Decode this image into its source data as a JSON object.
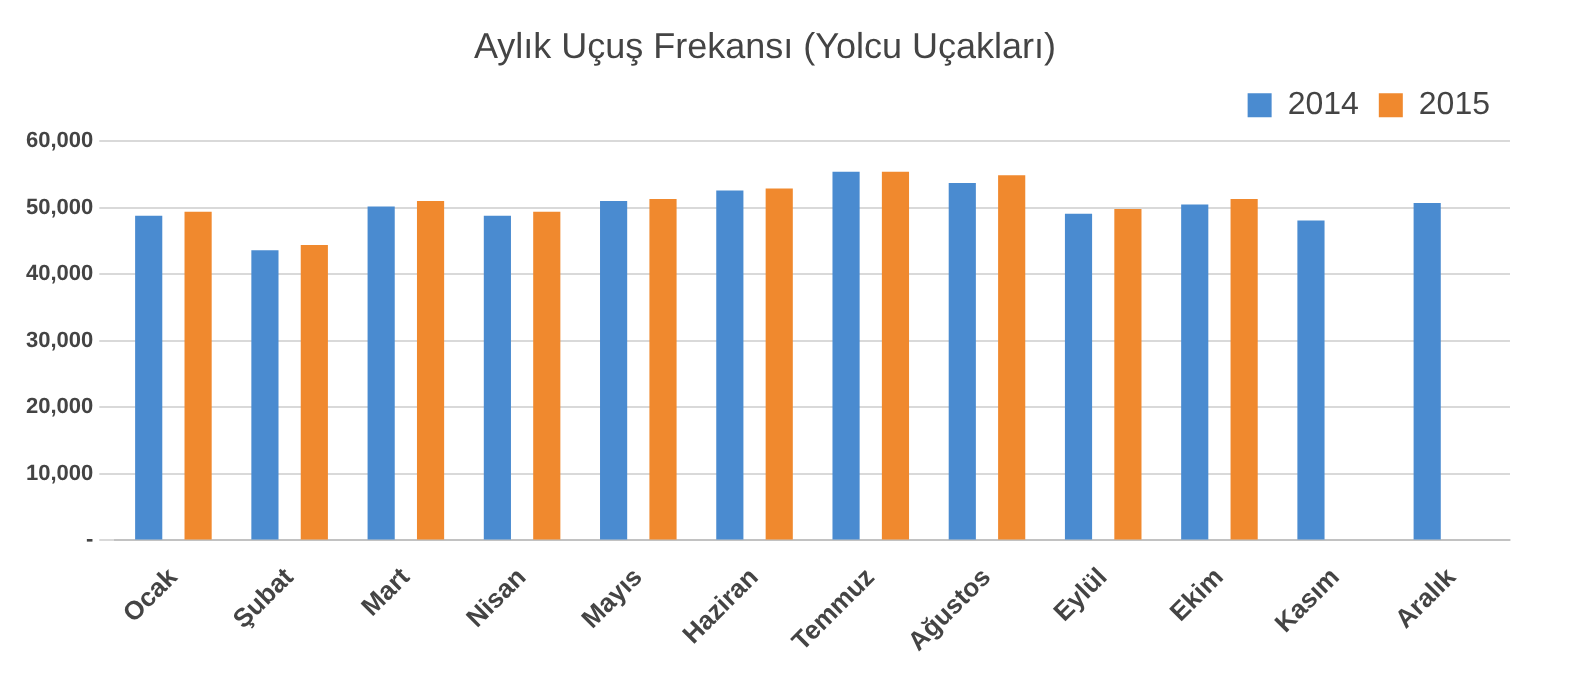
{
  "chart_data": {
    "type": "bar",
    "title": "Aylık Uçuş Frekansı (Yolcu Uçakları)",
    "categories": [
      "Ocak",
      "Şubat",
      "Mart",
      "Nisan",
      "Mayıs",
      "Haziran",
      "Temmuz",
      "Ağustos",
      "Eylül",
      "Ekim",
      "Kasım",
      "Aralık"
    ],
    "series": [
      {
        "name": "2014",
        "color": "#4a8bd0",
        "values": [
          48800,
          43600,
          50200,
          48800,
          51000,
          52600,
          55400,
          53700,
          49100,
          50500,
          48100,
          50700
        ]
      },
      {
        "name": "2015",
        "color": "#f0892e",
        "values": [
          49400,
          44400,
          51000,
          49400,
          51300,
          52900,
          55400,
          54900,
          49800,
          51300,
          null,
          null
        ]
      }
    ],
    "ylim": [
      0,
      60000
    ],
    "yticks": [
      {
        "value": 0,
        "label": "-"
      },
      {
        "value": 10000,
        "label": "10,000"
      },
      {
        "value": 20000,
        "label": "20,000"
      },
      {
        "value": 30000,
        "label": "30,000"
      },
      {
        "value": 40000,
        "label": "40,000"
      },
      {
        "value": 50000,
        "label": "50,000"
      },
      {
        "value": 60000,
        "label": "60,000"
      }
    ],
    "grid": "y",
    "legend": "top right"
  }
}
